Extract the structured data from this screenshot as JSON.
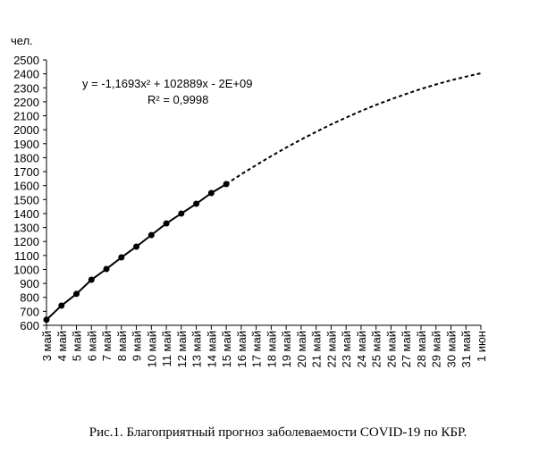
{
  "chart_data": {
    "type": "line",
    "y_label": "чел.",
    "equation": "y = -1,1693x² + 102889x - 2E+09",
    "r_squared": "R² = 0,9998",
    "caption": "Рис.1. Благоприятный прогноз заболеваемости COVID-19 по КБР.",
    "categories": [
      "3 май",
      "4 май",
      "5 май",
      "6 май",
      "7 май",
      "8 май",
      "9 май",
      "10 май",
      "11 май",
      "12 май",
      "13 май",
      "14 май",
      "15 май",
      "16 май",
      "17 май",
      "18 май",
      "19 май",
      "20 май",
      "21 май",
      "22 май",
      "23 май",
      "24 май",
      "25 май",
      "26 май",
      "27 май",
      "28 май",
      "29 май",
      "30 май",
      "31 май",
      "1 июн"
    ],
    "series": [
      {
        "color": "#000000",
        "style": "solid",
        "markers": true,
        "values": [
          640,
          741,
          825,
          926,
          1003,
          1086,
          1163,
          1246,
          1329,
          1400,
          1470,
          1547,
          1611,
          null,
          null,
          null,
          null,
          null,
          null,
          null,
          null,
          null,
          null,
          null,
          null,
          null,
          null,
          null,
          null,
          null
        ]
      },
      {
        "color": "#000000",
        "style": "dashed",
        "markers": false,
        "values": [
          null,
          null,
          null,
          null,
          null,
          null,
          null,
          null,
          null,
          null,
          null,
          null,
          1611,
          1681,
          1747,
          1811,
          1872,
          1930,
          1985,
          2038,
          2087,
          2134,
          2178,
          2218,
          2256,
          2292,
          2324,
          2354,
          2380,
          2404
        ]
      }
    ],
    "ylim": [
      600,
      2500
    ],
    "yticks": [
      600,
      700,
      800,
      900,
      1000,
      1100,
      1200,
      1300,
      1400,
      1500,
      1600,
      1700,
      1800,
      1900,
      2000,
      2100,
      2200,
      2300,
      2400,
      2500
    ],
    "grid": false
  }
}
